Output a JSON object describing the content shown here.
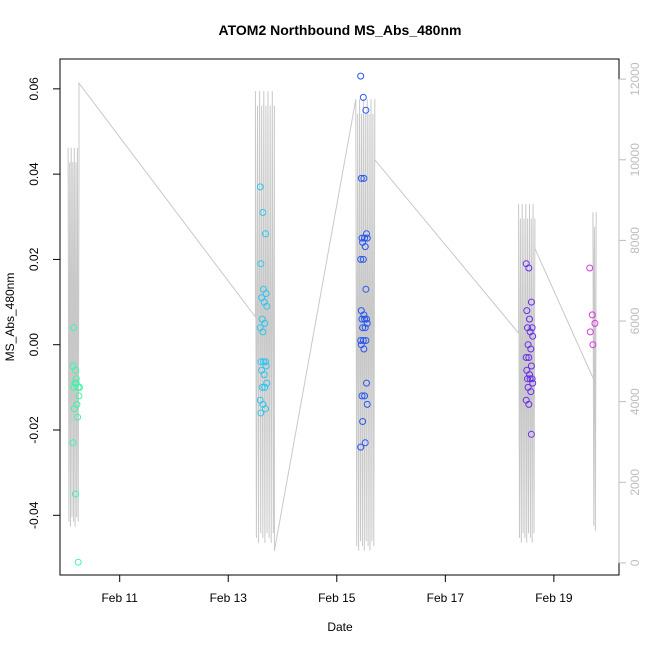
{
  "chart_data": {
    "type": "scatter",
    "title": "ATOM2 Northbound MS_Abs_480nm",
    "xlabel": "Date",
    "ylabel": "MS_Abs_480nm",
    "x_ticks": [
      "Feb 11",
      "Feb 13",
      "Feb 15",
      "Feb 17",
      "Feb 19"
    ],
    "x_range_days": [
      9.9,
      20.2
    ],
    "x_tick_positions_days": [
      11,
      13,
      15,
      17,
      19
    ],
    "y_ticks": [
      "-0.04",
      "-0.02",
      "0.00",
      "0.02",
      "0.04",
      "0.06"
    ],
    "ylim": [
      -0.054,
      0.067
    ],
    "y2_ticks": [
      "0",
      "2000",
      "4000",
      "6000",
      "8000",
      "10000",
      "12000"
    ],
    "y2lim": [
      -300,
      12500
    ],
    "colors": {
      "depth_line": "#c8c8c8",
      "axis": "#000000",
      "y2_axis": "#bdbdbd"
    },
    "point_groups": [
      {
        "color": "#3df5a6",
        "day": 10.2,
        "y": [
          -0.005,
          -0.006,
          -0.01,
          -0.01,
          -0.009,
          -0.012,
          -0.015,
          -0.014,
          -0.01,
          -0.009,
          -0.017,
          -0.023,
          -0.035,
          -0.051,
          0.004,
          -0.008
        ]
      },
      {
        "color": "#2ec6f0",
        "day": 13.65,
        "y": [
          0.037,
          0.031,
          0.026,
          0.019,
          0.013,
          0.012,
          0.011,
          0.01,
          0.009,
          0.006,
          0.005,
          0.004,
          0.003,
          -0.004,
          -0.004,
          -0.004,
          -0.005,
          -0.006,
          -0.007,
          -0.009,
          -0.01,
          -0.01,
          -0.013,
          -0.014,
          -0.015,
          -0.016
        ]
      },
      {
        "color": "#2957f2",
        "day": 15.5,
        "y": [
          0.063,
          0.058,
          0.055,
          0.039,
          0.039,
          0.026,
          0.025,
          0.025,
          0.025,
          0.024,
          0.023,
          0.02,
          0.02,
          0.013,
          0.008,
          0.007,
          0.006,
          0.006,
          0.006,
          0.005,
          0.004,
          0.004,
          0.001,
          0.001,
          0.001,
          0.0,
          -0.001,
          -0.009,
          -0.012,
          -0.012,
          -0.014,
          -0.018,
          -0.023,
          -0.024
        ]
      },
      {
        "color": "#6a2fee",
        "day": 18.55,
        "y": [
          0.019,
          0.018,
          0.01,
          0.008,
          0.006,
          0.004,
          0.004,
          0.003,
          0.002,
          0.0,
          -0.001,
          -0.003,
          -0.003,
          -0.005,
          -0.006,
          -0.007,
          -0.008,
          -0.008,
          -0.008,
          -0.009,
          -0.01,
          -0.011,
          -0.013,
          -0.014,
          -0.021
        ]
      },
      {
        "color": "#e033e8",
        "day": 19.72,
        "y": [
          0.018,
          0.007,
          0.005,
          0.003,
          0.0
        ]
      }
    ]
  }
}
